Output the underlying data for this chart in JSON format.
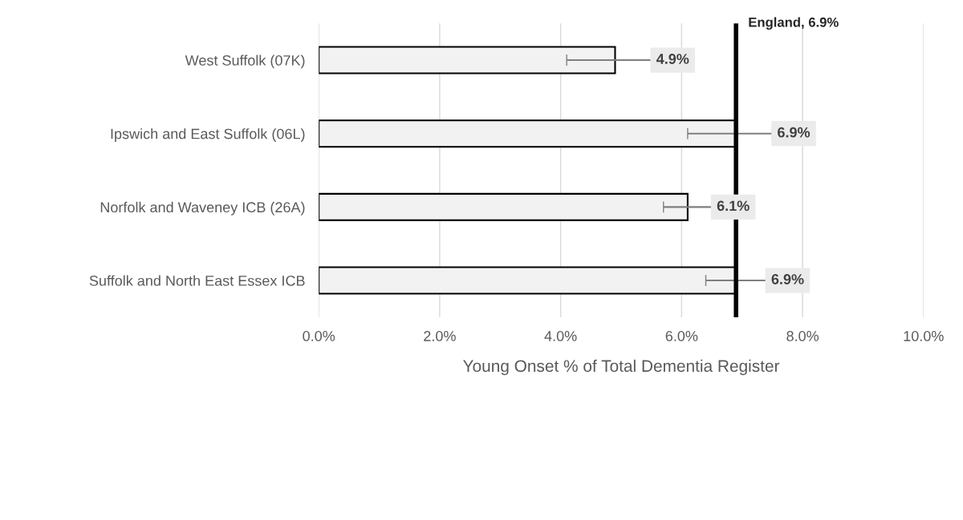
{
  "chart_data": {
    "type": "bar",
    "orientation": "horizontal",
    "xlabel": "Young Onset % of Total Dementia Register",
    "categories": [
      "West Suffolk (07K)",
      "Ipswich and East Suffolk (06L)",
      "Norfolk and Waveney ICB (26A)",
      "Suffolk and North East Essex ICB"
    ],
    "values": [
      4.9,
      6.9,
      6.1,
      6.9
    ],
    "errors": [
      [
        4.1,
        5.8
      ],
      [
        6.1,
        7.5
      ],
      [
        5.7,
        6.5
      ],
      [
        6.4,
        7.4
      ]
    ],
    "value_labels": [
      "4.9%",
      "6.9%",
      "6.1%",
      "6.9%"
    ],
    "color": "#f2f2f2",
    "xlim": [
      0,
      10
    ],
    "xticks": [
      {
        "value": 0,
        "label": "0.0%"
      },
      {
        "value": 2,
        "label": "2.0%"
      },
      {
        "value": 4,
        "label": "4.0%"
      },
      {
        "value": 6,
        "label": "6.0%"
      },
      {
        "value": 8,
        "label": "8.0%"
      },
      {
        "value": 10,
        "label": "10.0%"
      }
    ],
    "ref_lines": [
      {
        "axis": "x",
        "value": 6.9,
        "label": "England, 6.9%",
        "color": "#000000"
      }
    ],
    "grid": "x"
  }
}
